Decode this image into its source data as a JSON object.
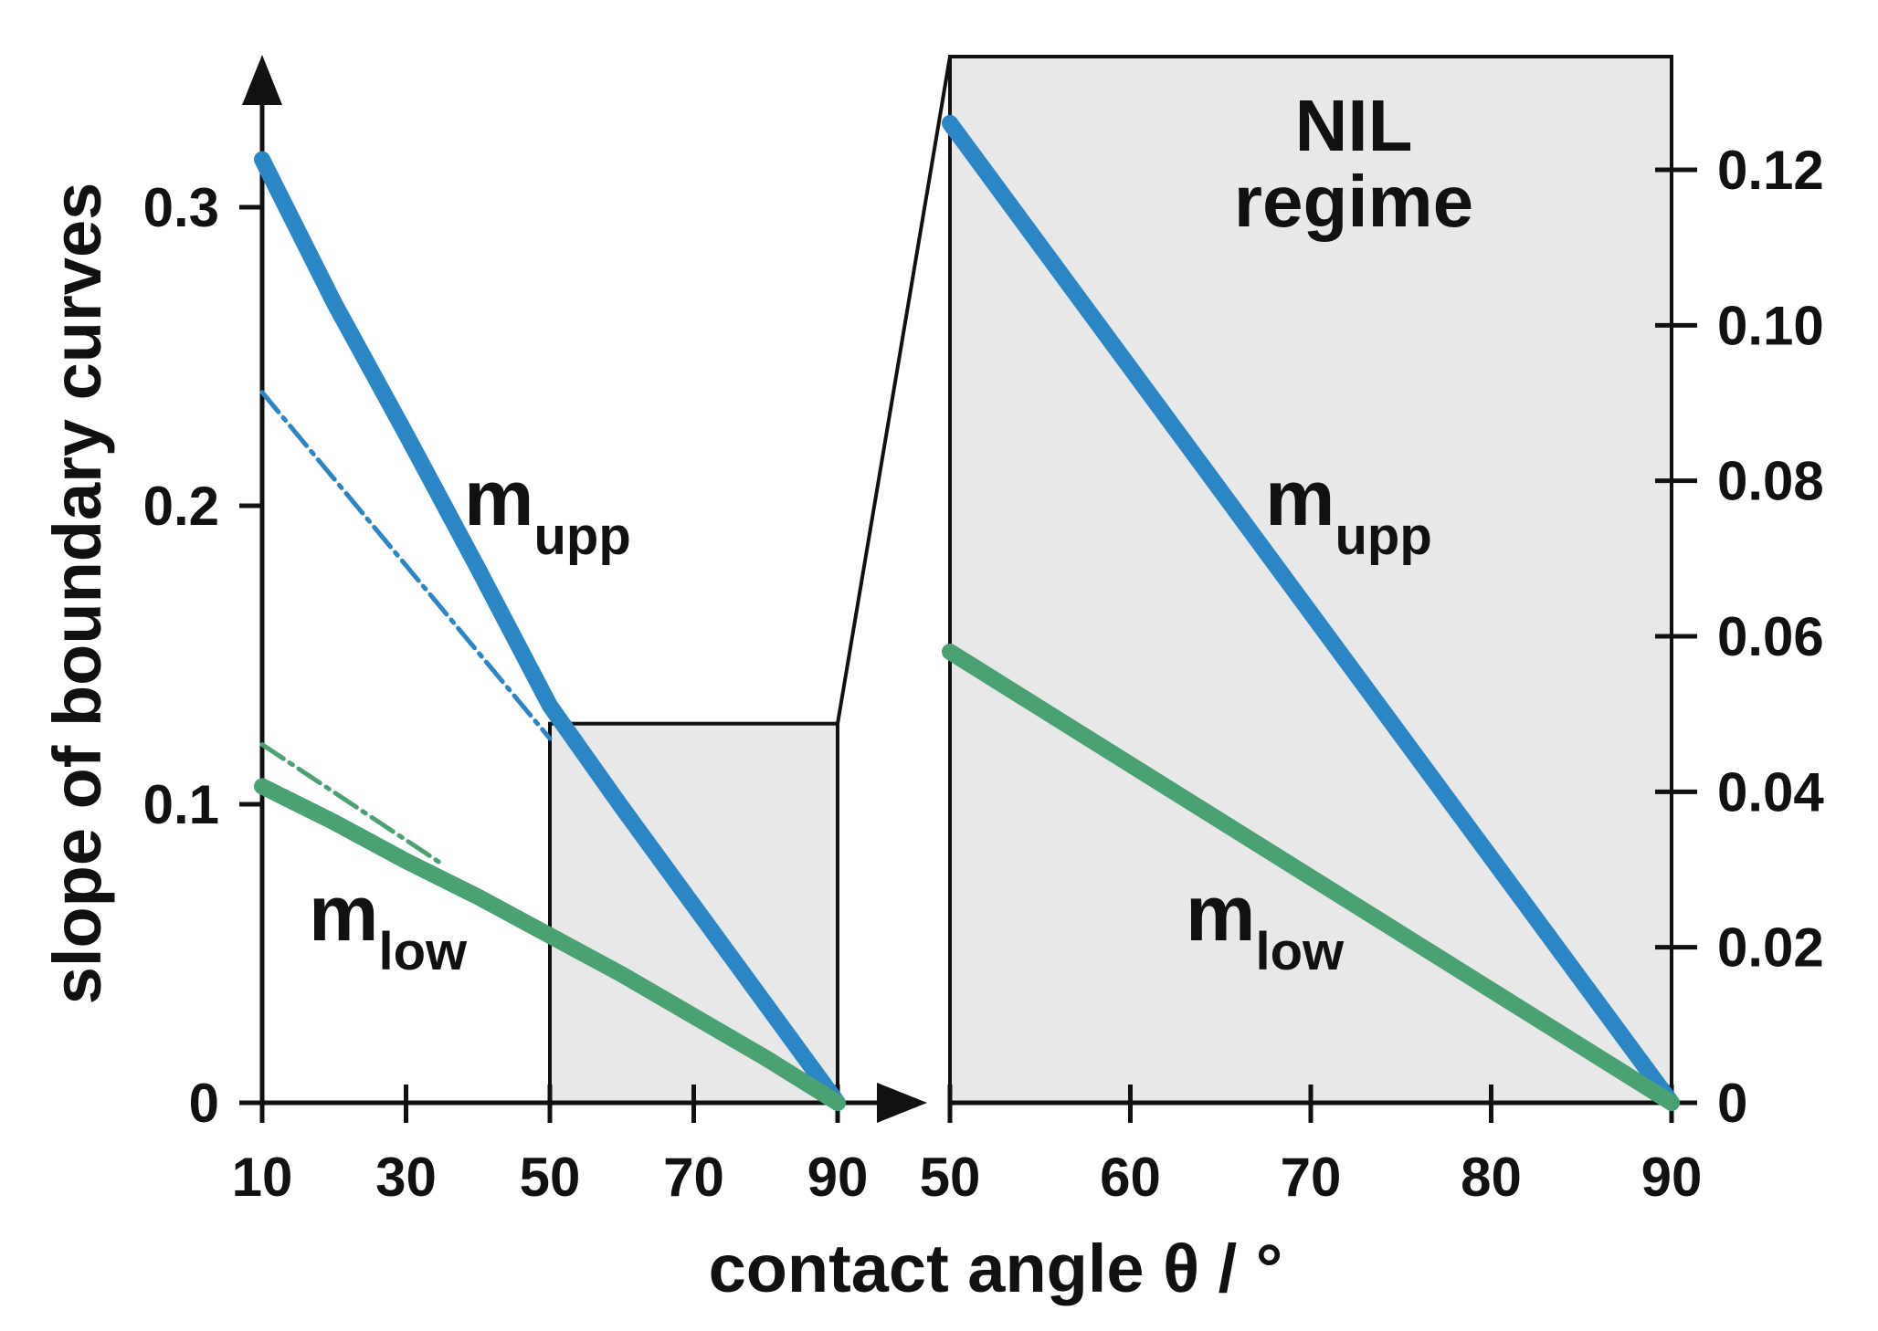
{
  "colors": {
    "upper": "#2b86c5",
    "lower": "#4aa273",
    "shade": "#e8e8e8",
    "axis": "#111111"
  },
  "labels": {
    "ylabel": "slope of boundary curves",
    "xlabel": "contact angle θ / °",
    "regime_line1": "NIL",
    "regime_line2": "regime",
    "m_main": "m",
    "upp_sub": "upp",
    "low_sub": "low"
  },
  "chart_data": [
    {
      "type": "line",
      "panel": "left",
      "xlim": [
        10,
        90
      ],
      "ylim": [
        0,
        0.35
      ],
      "xticks": [
        "10",
        "30",
        "50",
        "70",
        "90"
      ],
      "yticks": [
        "0",
        "0.1",
        "0.2",
        "0.3"
      ],
      "ytick_values": [
        0,
        0.1,
        0.2,
        0.3
      ],
      "xtick_values": [
        10,
        30,
        50,
        70,
        90
      ],
      "shaded_region": {
        "x": [
          50,
          90
        ],
        "y": [
          0,
          0.127
        ]
      },
      "series": [
        {
          "name": "m_upp",
          "style": "solid",
          "x": [
            10,
            20,
            30,
            40,
            50,
            60,
            70,
            80,
            90
          ],
          "y": [
            0.316,
            0.268,
            0.224,
            0.179,
            0.133,
            0.099,
            0.066,
            0.033,
            0.0
          ]
        },
        {
          "name": "m_upp approximation",
          "style": "dash-dot",
          "x": [
            10,
            50
          ],
          "y": [
            0.238,
            0.122
          ]
        },
        {
          "name": "m_low",
          "style": "solid",
          "x": [
            10,
            20,
            30,
            40,
            50,
            60,
            70,
            80,
            90
          ],
          "y": [
            0.106,
            0.094,
            0.081,
            0.069,
            0.056,
            0.043,
            0.029,
            0.015,
            0.0
          ]
        },
        {
          "name": "m_low approximation",
          "style": "dash-dot",
          "x": [
            10,
            35
          ],
          "y": [
            0.12,
            0.08
          ]
        }
      ]
    },
    {
      "type": "line",
      "panel": "right",
      "xlim": [
        50,
        90
      ],
      "ylim": [
        0,
        0.135
      ],
      "xticks": [
        "50",
        "60",
        "70",
        "80",
        "90"
      ],
      "xtick_values": [
        50,
        60,
        70,
        80,
        90
      ],
      "yticks": [
        "0",
        "0.02",
        "0.04",
        "0.06",
        "0.08",
        "0.10",
        "0.12"
      ],
      "ytick_values": [
        0,
        0.02,
        0.04,
        0.06,
        0.08,
        0.1,
        0.12
      ],
      "series": [
        {
          "name": "m_upp",
          "style": "solid",
          "x": [
            50,
            90
          ],
          "y": [
            0.126,
            0.0
          ]
        },
        {
          "name": "m_low",
          "style": "solid",
          "x": [
            50,
            90
          ],
          "y": [
            0.058,
            0.0
          ]
        }
      ]
    }
  ]
}
